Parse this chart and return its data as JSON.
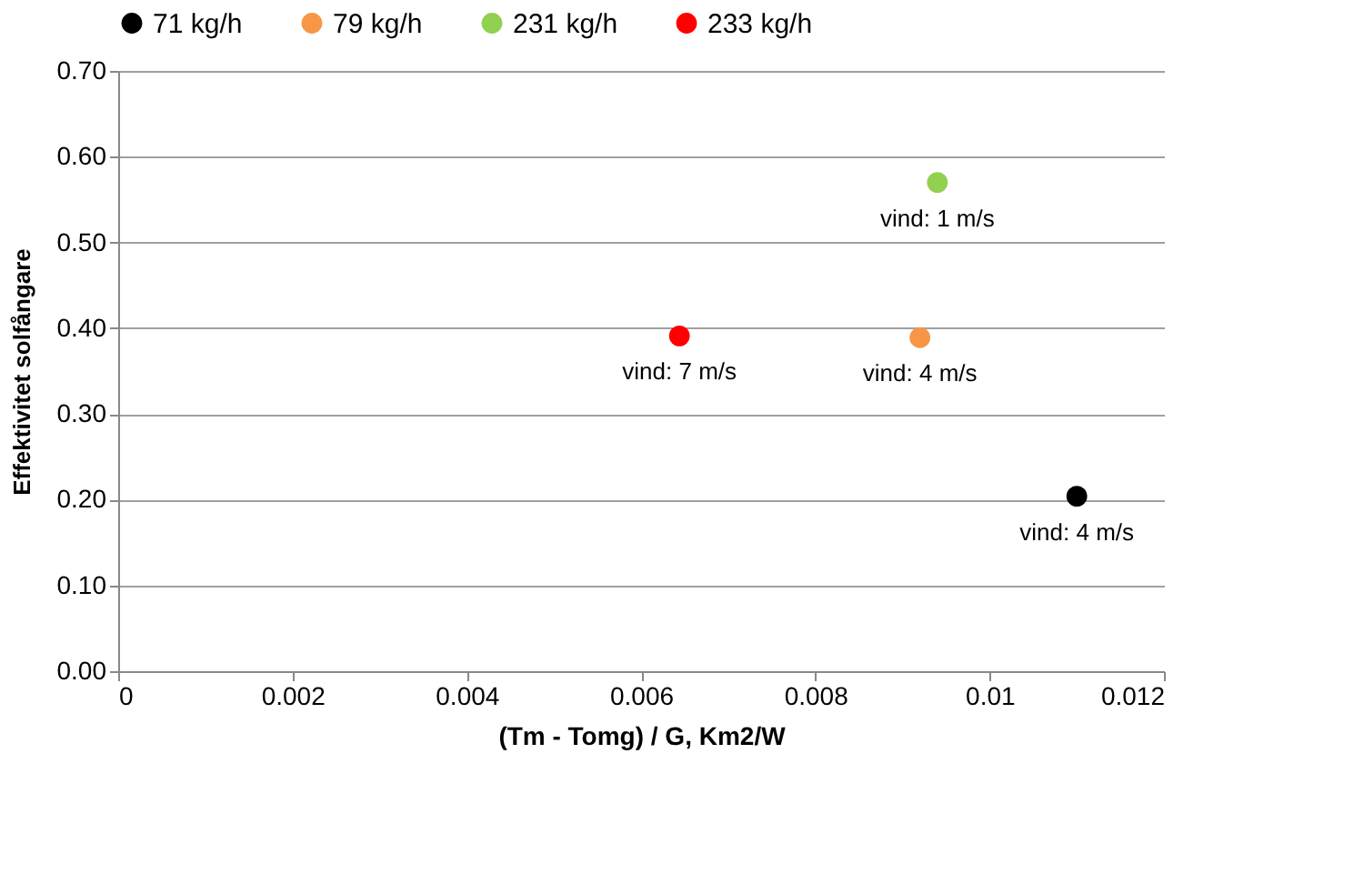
{
  "chart_data": {
    "type": "scatter",
    "xlabel": "(Tm - Tomg) / G, Km2/W",
    "ylabel": "Effektivitet solfångare",
    "series": [
      {
        "name": "71 kg/h",
        "color": "#000000",
        "x": [
          0.011
        ],
        "values": [
          0.204
        ]
      },
      {
        "name": "79 kg/h",
        "color": "#f79646",
        "x": [
          0.0092
        ],
        "values": [
          0.389
        ]
      },
      {
        "name": "231 kg/h",
        "color": "#92d050",
        "x": [
          0.0094
        ],
        "values": [
          0.57
        ]
      },
      {
        "name": "233 kg/h",
        "color": "#ff0000",
        "x": [
          0.00644
        ],
        "values": [
          0.391
        ]
      }
    ],
    "annotations": [
      {
        "text": "vind: 4 m/s",
        "x": 0.011,
        "y": 0.204
      },
      {
        "text": "vind: 4 m/s",
        "x": 0.0092,
        "y": 0.389
      },
      {
        "text": "vind: 1 m/s",
        "x": 0.0094,
        "y": 0.57
      },
      {
        "text": "vind: 7 m/s",
        "x": 0.00644,
        "y": 0.391
      }
    ],
    "xlim": [
      0,
      0.012
    ],
    "xticks": [
      0,
      0.002,
      0.004,
      0.006,
      0.008,
      0.01,
      0.012
    ],
    "ylim": [
      0,
      0.7
    ],
    "yticks": [
      {
        "value": 0,
        "label": "0.00"
      },
      {
        "value": 0.1,
        "label": "0.10"
      },
      {
        "value": 0.2,
        "label": "0.20"
      },
      {
        "value": 0.3,
        "label": "0.30"
      },
      {
        "value": 0.4,
        "label": "0.40"
      },
      {
        "value": 0.5,
        "label": "0.50"
      },
      {
        "value": 0.6,
        "label": "0.60"
      },
      {
        "value": 0.7,
        "label": "0.70"
      }
    ],
    "grid": "y",
    "legend": "top",
    "marker": "circle"
  }
}
